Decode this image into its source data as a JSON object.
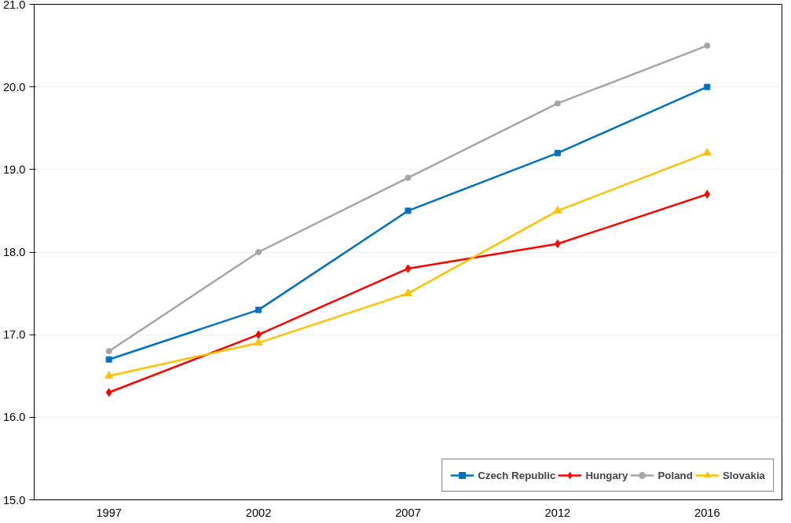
{
  "chart_data": {
    "type": "line",
    "categories": [
      "1997",
      "2002",
      "2007",
      "2012",
      "2016"
    ],
    "series": [
      {
        "name": "Czech Republic",
        "color": "#0070c0",
        "marker": "square",
        "values": [
          16.7,
          17.3,
          18.5,
          19.2,
          20.0
        ]
      },
      {
        "name": "Hungary",
        "color": "#ff0000",
        "marker": "diamond",
        "values": [
          16.3,
          17.0,
          17.8,
          18.1,
          18.7
        ]
      },
      {
        "name": "Poland",
        "color": "#a5a5a5",
        "marker": "circle",
        "values": [
          16.8,
          18.0,
          18.9,
          19.8,
          20.5
        ]
      },
      {
        "name": "Slovakia",
        "color": "#ffc000",
        "marker": "triangle",
        "values": [
          16.5,
          16.9,
          17.5,
          18.5,
          19.2
        ]
      }
    ],
    "ylim": [
      15,
      21
    ],
    "yticks": [
      {
        "value": 15,
        "label": "15.0"
      },
      {
        "value": 16,
        "label": "16.0"
      },
      {
        "value": 17,
        "label": "17.0"
      },
      {
        "value": 18,
        "label": "18.0"
      },
      {
        "value": 19,
        "label": "19.0"
      },
      {
        "value": 20,
        "label": "20.0"
      },
      {
        "value": 21,
        "label": "21.0"
      }
    ],
    "grid": "y",
    "legend": "bottom right",
    "line_style": "solid"
  }
}
